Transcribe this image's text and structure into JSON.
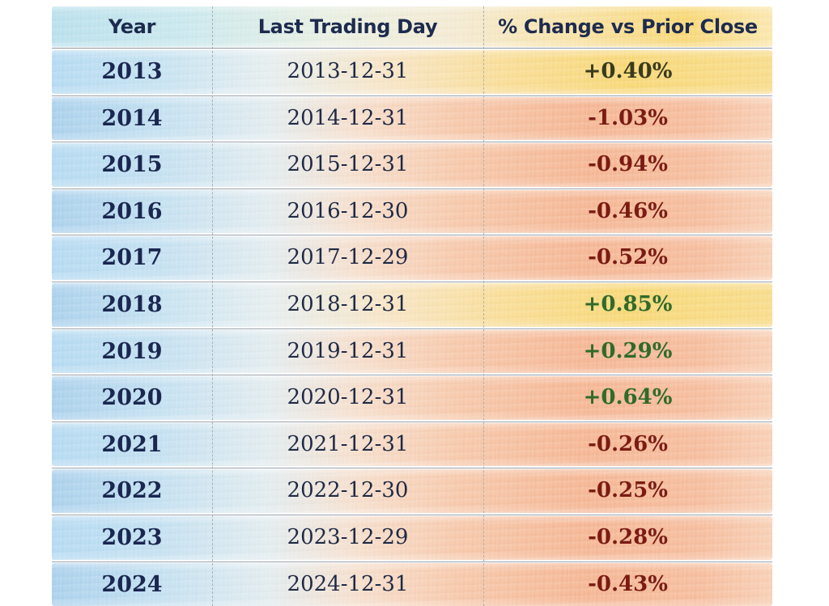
{
  "chart_data": {
    "type": "table",
    "columns": [
      "Year",
      "Last Trading Day",
      "% Change vs Prior Close"
    ],
    "rows": [
      {
        "year": "2013",
        "date": "2013-12-31",
        "change": "+0.40%",
        "value": 0.4
      },
      {
        "year": "2014",
        "date": "2014-12-31",
        "change": "-1.03%",
        "value": -1.03
      },
      {
        "year": "2015",
        "date": "2015-12-31",
        "change": "-0.94%",
        "value": -0.94
      },
      {
        "year": "2016",
        "date": "2016-12-30",
        "change": "-0.46%",
        "value": -0.46
      },
      {
        "year": "2017",
        "date": "2017-12-29",
        "change": "-0.52%",
        "value": -0.52
      },
      {
        "year": "2018",
        "date": "2018-12-31",
        "change": "+0.85%",
        "value": 0.85
      },
      {
        "year": "2019",
        "date": "2019-12-31",
        "change": "+0.29%",
        "value": 0.29
      },
      {
        "year": "2020",
        "date": "2020-12-31",
        "change": "+0.64%",
        "value": 0.64
      },
      {
        "year": "2021",
        "date": "2021-12-31",
        "change": "-0.26%",
        "value": -0.26
      },
      {
        "year": "2022",
        "date": "2022-12-30",
        "change": "-0.25%",
        "value": -0.25
      },
      {
        "year": "2023",
        "date": "2023-12-29",
        "change": "-0.28%",
        "value": -0.28
      },
      {
        "year": "2024",
        "date": "2024-12-31",
        "change": "-0.43%",
        "value": -0.43
      }
    ]
  },
  "colors": {
    "positive_text": "#2f6b2a",
    "negative_text": "#7a1c14",
    "first_row_text": "#3a3a1e",
    "blue_wash": "#a8d3ef",
    "orange_wash": "#f5b592",
    "yellow_wash": "#f8d774"
  }
}
